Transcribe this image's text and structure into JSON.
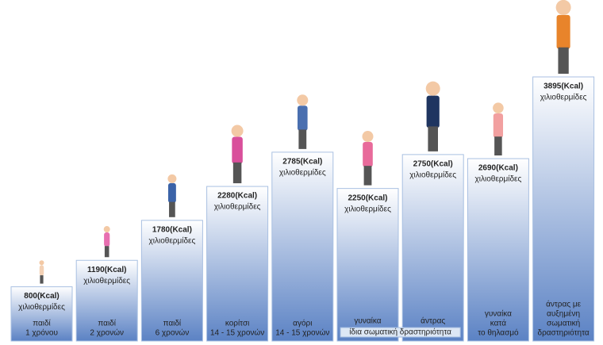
{
  "chart_data": {
    "type": "bar",
    "categories": [
      [
        "παιδί",
        "1 χρόνου"
      ],
      [
        "παιδί",
        "2 χρονών"
      ],
      [
        "παιδί",
        "6 χρονών"
      ],
      [
        "κορίτσι",
        "14 - 15 χρονών"
      ],
      [
        "αγόρι",
        "14 - 15 χρονών"
      ],
      [
        "γυναίκα"
      ],
      [
        "άντρας"
      ],
      [
        "γυναίκα",
        "κατά",
        "το θηλασμό"
      ],
      [
        "άντρας με",
        "αυξημένη",
        "σωματική",
        "δραστηριότητα"
      ]
    ],
    "values": [
      800,
      1190,
      1780,
      2280,
      2785,
      2250,
      2750,
      2690,
      3895
    ],
    "value_labels": [
      "800(Kcal)",
      "1190(Kcal)",
      "1780(Kcal)",
      "2280(Kcal)",
      "2785(Kcal)",
      "2250(Kcal)",
      "2750(Kcal)",
      "2690(Kcal)",
      "3895(Kcal)"
    ],
    "unit": "χιλιοθερμίδες",
    "annotation": "ίδια σωματική δραστηριότητα",
    "color": "#5b82c4"
  }
}
